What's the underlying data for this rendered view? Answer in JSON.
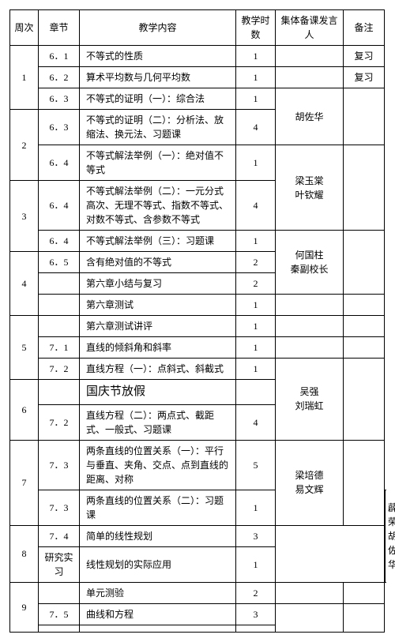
{
  "headers": {
    "week": "周次",
    "section": "章节",
    "content": "教学内容",
    "hours": "教学时数",
    "speaker": "集体备课发言人",
    "remark": "备注"
  },
  "rows": [
    {
      "week": "1",
      "weekRowspan": 3,
      "section": "6．1",
      "content": "不等式的性质",
      "hours": "1",
      "speaker": "",
      "speakerRowspan": 1,
      "remark": "复习",
      "remarkRowspan": 1
    },
    {
      "section": "6．2",
      "content": "算术平均数与几何平均数",
      "hours": "1",
      "speaker": "",
      "speakerRowspan": 1,
      "remark": "复习",
      "remarkRowspan": 1
    },
    {
      "section": "6．3",
      "content": "不等式的证明（一）：综合法",
      "hours": "1",
      "speaker": "胡佐华",
      "speakerRowspan": 2,
      "remark": "",
      "remarkRowspan": 2
    },
    {
      "week": "2",
      "weekRowspan": 2,
      "section": "6．3",
      "content": "不等式的证明（二）：分析法、放缩法、换元法、习题课",
      "hours": "4"
    },
    {
      "section": "6．4",
      "content": "不等式解法举例（一）：绝对值不等式",
      "hours": "1",
      "speaker": "梁玉棠\n叶钦耀",
      "speakerRowspan": 2,
      "remark": "",
      "remarkRowspan": 2
    },
    {
      "week": "3",
      "weekRowspan": 2,
      "section": "6．4",
      "content": "不等式解法举例（二）：一元分式高次、无理不等式、指数不等式、对数不等式、含参数不等式",
      "hours": "4"
    },
    {
      "section": "6．4",
      "content": "不等式解法举例（三）：习题课",
      "hours": "1",
      "speaker": "何国柱\n秦副校长",
      "speakerRowspan": 3,
      "remark": "",
      "remarkRowspan": 3
    },
    {
      "week": "4",
      "weekRowspan": 3,
      "section": "6．5",
      "content": "含有绝对值的不等式",
      "hours": "2"
    },
    {
      "section": "",
      "content": "第六章小结与复习",
      "hours": "2"
    },
    {
      "section": "",
      "content": "第六章测试",
      "hours": "1",
      "speaker": "",
      "speakerRowspan": 1,
      "remark": "",
      "remarkRowspan": 1
    },
    {
      "week": "5",
      "weekRowspan": 3,
      "section": "",
      "content": "第六章测试讲评",
      "hours": "1",
      "speaker": "",
      "speakerRowspan": 1,
      "remark": "",
      "remarkRowspan": 1
    },
    {
      "section": "7．1",
      "content": "直线的倾斜角和斜率",
      "hours": "1",
      "speaker": "",
      "speakerRowspan": 1,
      "remark": "",
      "remarkRowspan": 1
    },
    {
      "section": "7．2",
      "content": "直线方程（一）：点斜式、斜截式",
      "hours": "1",
      "speaker": "吴强\n刘瑞虹",
      "speakerRowspan": 3,
      "remark": "",
      "remarkRowspan": 3
    },
    {
      "week": "6",
      "weekRowspan": 2,
      "section": "",
      "content": "国庆节放假",
      "contentClass": "holiday",
      "hours": ""
    },
    {
      "section": "7．2",
      "content": "直线方程（二）：两点式、截距式、一般式、习题课",
      "hours": "4"
    },
    {
      "week": "7",
      "weekRowspan": 2,
      "section": "7．3",
      "content": "两条直线的位置关系（一）：平行与垂直、夹角、交点、点到直线的距离、对称",
      "hours": "5",
      "speaker": "梁培德\n易文辉",
      "speakerRowspan": 2,
      "remark": "",
      "remarkRowspan": 2
    },
    {
      "section": "7．3",
      "content": "两条直线的位置关系（二）：习题课",
      "hours": "1",
      "speaker": "薜荣\n胡佐华",
      "speakerRowspan": 3,
      "remark": "",
      "remarkRowspan": 3
    },
    {
      "week": "8",
      "weekRowspan": 2,
      "section": "7．4",
      "content": "简单的线性规划",
      "hours": "3"
    },
    {
      "section": "研究实习",
      "content": "线性规划的实际应用",
      "hours": "1"
    },
    {
      "week": "9",
      "weekRowspan": 3,
      "section": "",
      "content": "单元测验",
      "hours": "2",
      "speaker": "",
      "speakerRowspan": 1,
      "remark": "",
      "remarkRowspan": 1
    },
    {
      "section": "7．5",
      "content": "曲线和方程",
      "hours": "3",
      "speaker": "",
      "speakerRowspan": 2,
      "remark": "",
      "remarkRowspan": 2
    },
    {
      "section": "",
      "content": "",
      "hours": ""
    }
  ]
}
